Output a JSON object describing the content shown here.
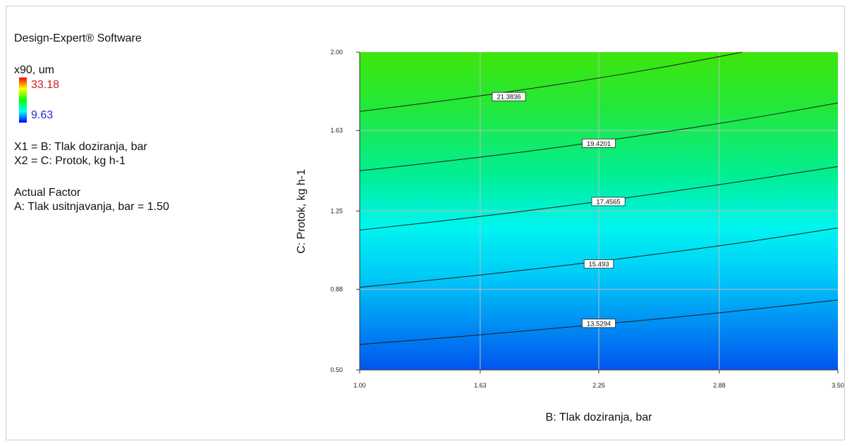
{
  "info": {
    "software": "Design-Expert® Software",
    "response": "x90, um",
    "legend_max": "33.18",
    "legend_min": "9.63",
    "x1": "X1 = B: Tlak doziranja, bar",
    "x2": "X2 = C: Protok, kg h-1",
    "actual_factor_title": "Actual Factor",
    "actual_factor": "A: Tlak usitnjavanja, bar = 1.50"
  },
  "chart_data": {
    "type": "contour",
    "xlabel": "B: Tlak doziranja, bar",
    "ylabel": "C: Protok, kg h-1",
    "xlim": [
      1.0,
      3.5
    ],
    "ylim": [
      0.5,
      2.0
    ],
    "x_ticks": [
      "1.00",
      "1.63",
      "2.25",
      "2.88",
      "3.50"
    ],
    "y_ticks": [
      "0.50",
      "0.88",
      "1.25",
      "1.63",
      "2.00"
    ],
    "color_range": [
      9.63,
      33.18
    ],
    "contours": [
      {
        "label": "13.5294",
        "label_at": [
          2.25,
          0.72
        ],
        "points": [
          [
            1.0,
            0.62
          ],
          [
            1.5,
            0.655
          ],
          [
            2.0,
            0.695
          ],
          [
            2.5,
            0.735
          ],
          [
            3.0,
            0.78
          ],
          [
            3.5,
            0.83
          ]
        ]
      },
      {
        "label": "15.493",
        "label_at": [
          2.25,
          1.0
        ],
        "points": [
          [
            1.0,
            0.89
          ],
          [
            1.5,
            0.935
          ],
          [
            2.0,
            0.985
          ],
          [
            2.5,
            1.04
          ],
          [
            3.0,
            1.1
          ],
          [
            3.5,
            1.17
          ]
        ]
      },
      {
        "label": "17.4565",
        "label_at": [
          2.3,
          1.295
        ],
        "points": [
          [
            1.0,
            1.16
          ],
          [
            1.5,
            1.21
          ],
          [
            2.0,
            1.265
          ],
          [
            2.5,
            1.325
          ],
          [
            3.0,
            1.39
          ],
          [
            3.5,
            1.46
          ]
        ]
      },
      {
        "label": "19.4201",
        "label_at": [
          2.25,
          1.57
        ],
        "points": [
          [
            1.0,
            1.44
          ],
          [
            1.5,
            1.49
          ],
          [
            2.0,
            1.545
          ],
          [
            2.5,
            1.61
          ],
          [
            3.0,
            1.68
          ],
          [
            3.5,
            1.76
          ]
        ]
      },
      {
        "label": "21.3836",
        "label_at": [
          1.78,
          1.79
        ],
        "points": [
          [
            1.0,
            1.72
          ],
          [
            1.4,
            1.765
          ],
          [
            1.8,
            1.815
          ],
          [
            2.2,
            1.87
          ],
          [
            2.6,
            1.93
          ],
          [
            3.0,
            2.0
          ]
        ]
      }
    ]
  }
}
